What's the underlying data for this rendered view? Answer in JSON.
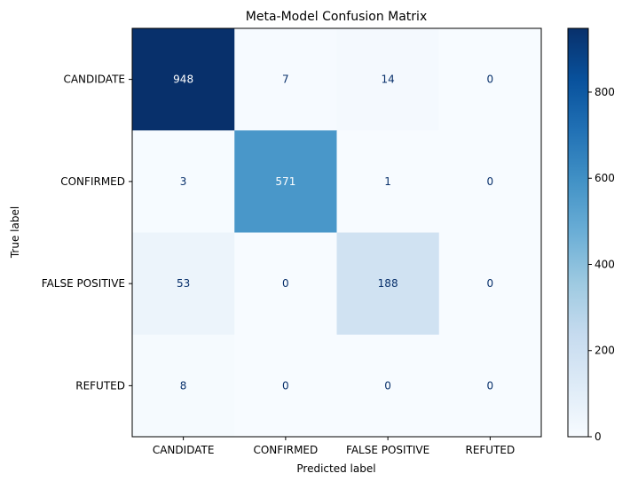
{
  "chart_data": {
    "type": "heatmap",
    "title": "Meta-Model Confusion Matrix",
    "xlabel": "Predicted label",
    "ylabel": "True label",
    "x_categories": [
      "CANDIDATE",
      "CONFIRMED",
      "FALSE POSITIVE",
      "REFUTED"
    ],
    "y_categories": [
      "CANDIDATE",
      "CONFIRMED",
      "FALSE POSITIVE",
      "REFUTED"
    ],
    "values": [
      [
        948,
        7,
        14,
        0
      ],
      [
        3,
        571,
        1,
        0
      ],
      [
        53,
        0,
        188,
        0
      ],
      [
        8,
        0,
        0,
        0
      ]
    ],
    "colormap": "Blues",
    "colorbar": {
      "min": 0,
      "max": 948,
      "ticks": [
        0,
        200,
        400,
        600,
        800
      ]
    },
    "colors": {
      "low": "#f7fbff",
      "high": "#08306b",
      "text_dark": "#08306b",
      "text_light": "#ffffff"
    },
    "grid": false
  }
}
